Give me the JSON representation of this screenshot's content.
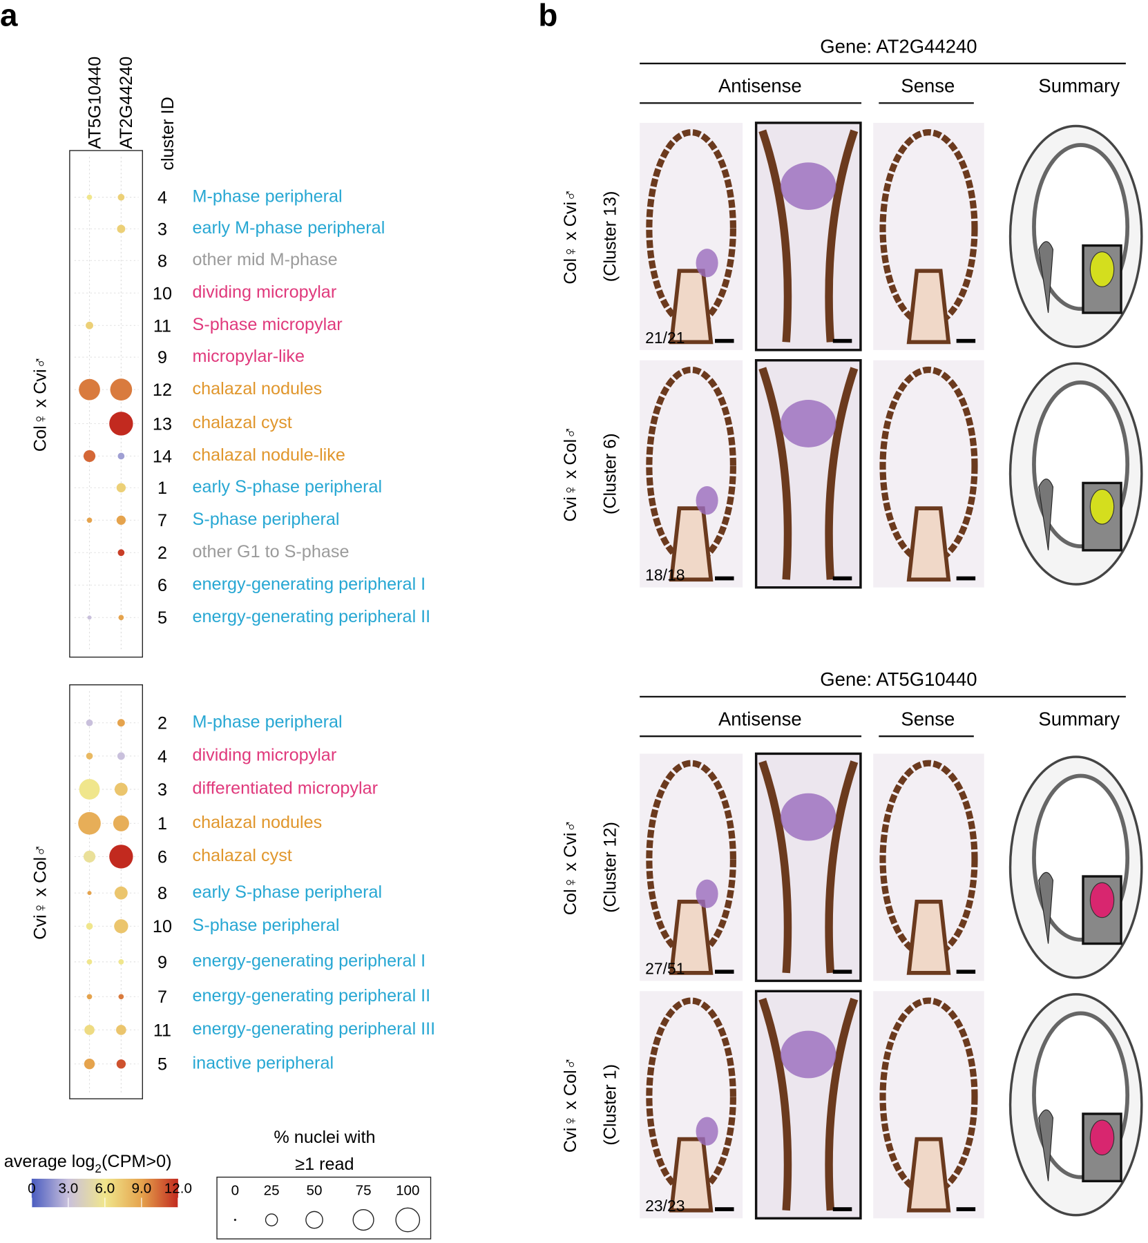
{
  "panel_a": {
    "letter": "a",
    "columns": [
      "AT5G10440",
      "AT2G44240"
    ],
    "id_header": "cluster ID",
    "groups": [
      {
        "label": "Col♀ x Cvi♂",
        "rows": [
          {
            "id": 4,
            "name": "M-phase peripheral",
            "color": "#27a7d3",
            "dots": [
              {
                "pct": 5,
                "expr": 6
              },
              {
                "pct": 8,
                "expr": 7
              }
            ]
          },
          {
            "id": 3,
            "name": "early M-phase peripheral",
            "color": "#27a7d3",
            "dots": [
              null,
              {
                "pct": 12,
                "expr": 7
              }
            ]
          },
          {
            "id": 8,
            "name": "other mid M-phase",
            "color": "#9b9b9b",
            "dots": [
              null,
              null
            ]
          },
          {
            "id": 10,
            "name": "dividing micropylar",
            "color": "#e0397c",
            "dots": [
              null,
              null
            ]
          },
          {
            "id": 11,
            "name": "S-phase micropylar",
            "color": "#e0397c",
            "dots": [
              {
                "pct": 10,
                "expr": 7
              },
              null
            ]
          },
          {
            "id": 9,
            "name": "micropylar-like",
            "color": "#e0397c",
            "dots": [
              null,
              null
            ]
          },
          {
            "id": 12,
            "name": "chalazal nodules",
            "color": "#e0962c",
            "dots": [
              {
                "pct": 80,
                "expr": 10
              },
              {
                "pct": 85,
                "expr": 10
              }
            ]
          },
          {
            "id": 13,
            "name": "chalazal cyst",
            "color": "#e0962c",
            "dots": [
              null,
              {
                "pct": 100,
                "expr": 12
              }
            ]
          },
          {
            "id": 14,
            "name": "chalazal nodule-like",
            "color": "#e0962c",
            "dots": [
              {
                "pct": 25,
                "expr": 10.5
              },
              {
                "pct": 8,
                "expr": 2
              }
            ]
          },
          {
            "id": 1,
            "name": "early S-phase peripheral",
            "color": "#27a7d3",
            "dots": [
              null,
              {
                "pct": 15,
                "expr": 7
              }
            ]
          },
          {
            "id": 7,
            "name": "S-phase peripheral",
            "color": "#27a7d3",
            "dots": [
              {
                "pct": 5,
                "expr": 9
              },
              {
                "pct": 15,
                "expr": 9
              }
            ]
          },
          {
            "id": 2,
            "name": "other G1 to S-phase",
            "color": "#9b9b9b",
            "dots": [
              null,
              {
                "pct": 8,
                "expr": 11.5
              }
            ]
          },
          {
            "id": 6,
            "name": "energy-generating peripheral I",
            "color": "#27a7d3",
            "dots": [
              null,
              null
            ]
          },
          {
            "id": 5,
            "name": "energy-generating peripheral II",
            "color": "#27a7d3",
            "dots": [
              {
                "pct": 3,
                "expr": 3
              },
              {
                "pct": 5,
                "expr": 9
              }
            ]
          }
        ]
      },
      {
        "label": "Cvi♀ x Col♂",
        "rows": [
          {
            "id": 2,
            "name": "M-phase peripheral",
            "color": "#27a7d3",
            "dots": [
              {
                "pct": 8,
                "expr": 3
              },
              {
                "pct": 10,
                "expr": 9
              }
            ]
          },
          {
            "id": 4,
            "name": "dividing micropylar",
            "color": "#e0397c",
            "dots": [
              {
                "pct": 8,
                "expr": 8
              },
              {
                "pct": 10,
                "expr": 3
              }
            ]
          },
          {
            "id": 3,
            "name": "differentiated micropylar",
            "color": "#e0397c",
            "dots": [
              {
                "pct": 75,
                "expr": 6
              },
              {
                "pct": 30,
                "expr": 7.5
              }
            ]
          },
          {
            "id": 1,
            "name": "chalazal nodules",
            "color": "#e0962c",
            "dots": [
              {
                "pct": 90,
                "expr": 8.5
              },
              {
                "pct": 45,
                "expr": 8.5
              }
            ]
          },
          {
            "id": 6,
            "name": "chalazal cyst",
            "color": "#e0962c",
            "dots": [
              {
                "pct": 25,
                "expr": 5.5
              },
              {
                "pct": 100,
                "expr": 12
              }
            ]
          },
          {
            "id": 8,
            "name": "early S-phase peripheral",
            "color": "#27a7d3",
            "dots": [
              {
                "pct": 3,
                "expr": 9
              },
              {
                "pct": 30,
                "expr": 7.5
              }
            ]
          },
          {
            "id": 10,
            "name": "S-phase peripheral",
            "color": "#27a7d3",
            "dots": [
              {
                "pct": 8,
                "expr": 6
              },
              {
                "pct": 35,
                "expr": 7.5
              }
            ]
          },
          {
            "id": 9,
            "name": "energy-generating peripheral I",
            "color": "#27a7d3",
            "dots": [
              {
                "pct": 5,
                "expr": 6
              },
              {
                "pct": 5,
                "expr": 6
              }
            ]
          },
          {
            "id": 7,
            "name": "energy-generating peripheral II",
            "color": "#27a7d3",
            "dots": [
              {
                "pct": 5,
                "expr": 9
              },
              {
                "pct": 5,
                "expr": 10
              }
            ]
          },
          {
            "id": 11,
            "name": "energy-generating peripheral III",
            "color": "#27a7d3",
            "dots": [
              {
                "pct": 18,
                "expr": 6.5
              },
              {
                "pct": 18,
                "expr": 7.5
              }
            ]
          },
          {
            "id": 5,
            "name": "inactive peripheral",
            "color": "#27a7d3",
            "dots": [
              {
                "pct": 20,
                "expr": 9
              },
              {
                "pct": 15,
                "expr": 11
              }
            ]
          }
        ]
      }
    ],
    "legend": {
      "color_title": [
        "average log",
        "2",
        "(CPM>0)"
      ],
      "colormap": {
        "colors": [
          "#4a5cc0",
          "#c9c0dc",
          "#f0e68c",
          "#e5a34d",
          "#c22a1f"
        ],
        "ticks": [
          0,
          {
            "value": 3,
            "label": "3.0"
          },
          {
            "value": 6,
            "label": "6.0"
          },
          {
            "value": 9,
            "label": "9.0"
          },
          {
            "value": 12,
            "label": "12.0"
          }
        ]
      },
      "size_title": [
        "% nuclei with",
        "≥1 read"
      ],
      "size_ticks": [
        0,
        25,
        50,
        75,
        100
      ]
    }
  },
  "panel_b": {
    "letter": "b",
    "sections": [
      {
        "gene": "Gene: AT2G44240",
        "headers": [
          "Antisense",
          "Sense",
          "Summary"
        ],
        "rows": [
          {
            "cross": "Col♀ x Cvi♂",
            "cluster": "(Cluster 13)",
            "count": "21/21",
            "summary_color": "#d4de1e"
          },
          {
            "cross": "Cvi♀ x Col♂",
            "cluster": "(Cluster 6)",
            "count": "18/18",
            "summary_color": "#d4de1e"
          }
        ]
      },
      {
        "gene": "Gene: AT5G10440",
        "headers": [
          "Antisense",
          "Sense",
          "Summary"
        ],
        "rows": [
          {
            "cross": "Col♀ x Cvi♂",
            "cluster": "(Cluster 12)",
            "count": "27/51",
            "summary_color": "#d8266f"
          },
          {
            "cross": "Cvi♀ x Col♂",
            "cluster": "(Cluster 1)",
            "count": "23/23",
            "summary_color": "#d8266f"
          }
        ]
      }
    ]
  }
}
